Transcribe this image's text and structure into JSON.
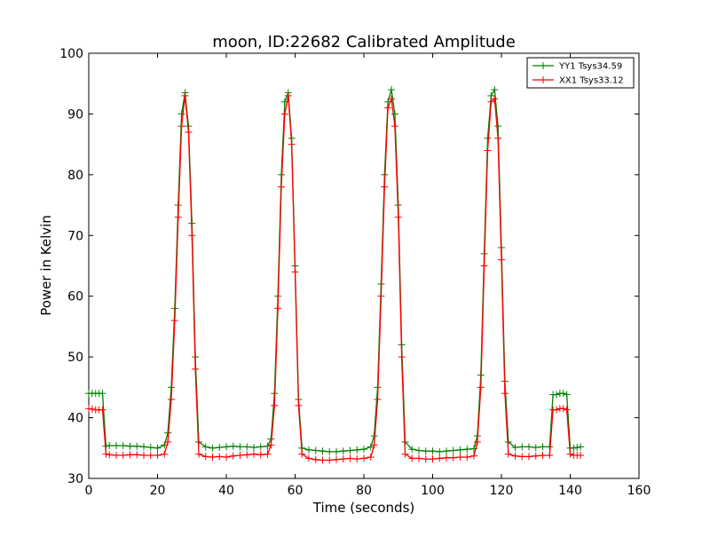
{
  "chart_data": {
    "type": "line",
    "title": "moon, ID:22682 Calibrated Amplitude",
    "xlabel": "Time (seconds)",
    "ylabel": "Power in Kelvin",
    "xlim": [
      0,
      160
    ],
    "ylim": [
      30,
      100
    ],
    "xticks": [
      0,
      20,
      40,
      60,
      80,
      100,
      120,
      140,
      160
    ],
    "yticks": [
      30,
      40,
      50,
      60,
      70,
      80,
      90,
      100
    ],
    "grid": false,
    "legend_position": "top-right",
    "series": [
      {
        "name": "YY1 Tsys34.59",
        "color": "#008000",
        "marker": "+",
        "x": [
          0,
          1,
          2,
          3,
          4,
          5,
          6,
          8,
          10,
          12,
          14,
          16,
          18,
          20,
          22,
          23,
          24,
          25,
          26,
          27,
          28,
          29,
          30,
          31,
          32,
          34,
          36,
          38,
          40,
          42,
          44,
          46,
          48,
          50,
          52,
          53,
          54,
          55,
          56,
          57,
          58,
          59,
          60,
          61,
          62,
          64,
          66,
          68,
          70,
          72,
          74,
          76,
          78,
          80,
          82,
          83,
          84,
          85,
          86,
          87,
          88,
          89,
          90,
          91,
          92,
          94,
          96,
          98,
          100,
          102,
          104,
          106,
          108,
          110,
          112,
          113,
          114,
          115,
          116,
          117,
          118,
          119,
          120,
          121,
          122,
          124,
          126,
          128,
          130,
          132,
          134,
          135,
          136,
          137,
          138,
          139,
          140,
          141,
          142,
          143
        ],
        "values": [
          44,
          44,
          44,
          44,
          44,
          35.3,
          35.4,
          35.4,
          35.4,
          35.3,
          35.3,
          35.2,
          35.1,
          35,
          35.5,
          37.5,
          45,
          58,
          75,
          90,
          93.5,
          88,
          72,
          50,
          36,
          35.2,
          35,
          35.1,
          35.2,
          35.3,
          35.2,
          35.2,
          35.1,
          35.2,
          35.3,
          36.5,
          44,
          60,
          80,
          92,
          93.5,
          86,
          65,
          43,
          35,
          34.7,
          34.6,
          34.5,
          34.4,
          34.4,
          34.5,
          34.6,
          34.7,
          34.8,
          35.2,
          37,
          45,
          62,
          80,
          92,
          94,
          90,
          75,
          52,
          36,
          34.8,
          34.6,
          34.5,
          34.5,
          34.4,
          34.5,
          34.6,
          34.7,
          34.8,
          34.9,
          37,
          47,
          67,
          86,
          93,
          94,
          88,
          68,
          46,
          36,
          35.1,
          35.2,
          35.2,
          35.1,
          35.2,
          35.2,
          43.8,
          43.8,
          44,
          44,
          43.8,
          35,
          35,
          35.1,
          35.2
        ]
      },
      {
        "name": "XX1 Tsys33.12",
        "color": "#ff0000",
        "marker": "+",
        "x": [
          0,
          1,
          2,
          3,
          4,
          5,
          6,
          8,
          10,
          12,
          14,
          16,
          18,
          20,
          22,
          23,
          24,
          25,
          26,
          27,
          28,
          29,
          30,
          31,
          32,
          34,
          36,
          38,
          40,
          42,
          44,
          46,
          48,
          50,
          52,
          53,
          54,
          55,
          56,
          57,
          58,
          59,
          60,
          61,
          62,
          64,
          66,
          68,
          70,
          72,
          74,
          76,
          78,
          80,
          82,
          83,
          84,
          85,
          86,
          87,
          88,
          89,
          90,
          91,
          92,
          94,
          96,
          98,
          100,
          102,
          104,
          106,
          108,
          110,
          112,
          113,
          114,
          115,
          116,
          117,
          118,
          119,
          120,
          121,
          122,
          124,
          126,
          128,
          130,
          132,
          134,
          135,
          136,
          137,
          138,
          139,
          140,
          141,
          142,
          143
        ],
        "values": [
          41.5,
          41.4,
          41.3,
          41.3,
          41.3,
          34,
          33.9,
          33.8,
          33.8,
          33.9,
          33.9,
          33.8,
          33.8,
          33.8,
          34,
          36,
          43,
          56,
          73,
          88,
          93,
          87,
          70,
          48,
          34,
          33.6,
          33.5,
          33.6,
          33.5,
          33.7,
          33.8,
          33.9,
          34,
          33.9,
          34,
          35.5,
          42,
          58,
          78,
          90,
          93,
          85,
          64,
          42,
          34,
          33.3,
          33.1,
          33,
          33,
          33.1,
          33.2,
          33.3,
          33.2,
          33.3,
          33.5,
          35.5,
          43,
          60,
          78,
          91,
          92.5,
          88,
          73,
          50,
          34,
          33.3,
          33.3,
          33.2,
          33.2,
          33.3,
          33.4,
          33.4,
          33.5,
          33.5,
          33.7,
          36,
          45,
          65,
          84,
          92,
          92.5,
          86,
          66,
          44,
          34,
          33.7,
          33.6,
          33.6,
          33.7,
          33.8,
          33.8,
          41.3,
          41.3,
          41.5,
          41.5,
          41.3,
          34,
          33.8,
          33.8,
          33.8
        ]
      }
    ]
  }
}
